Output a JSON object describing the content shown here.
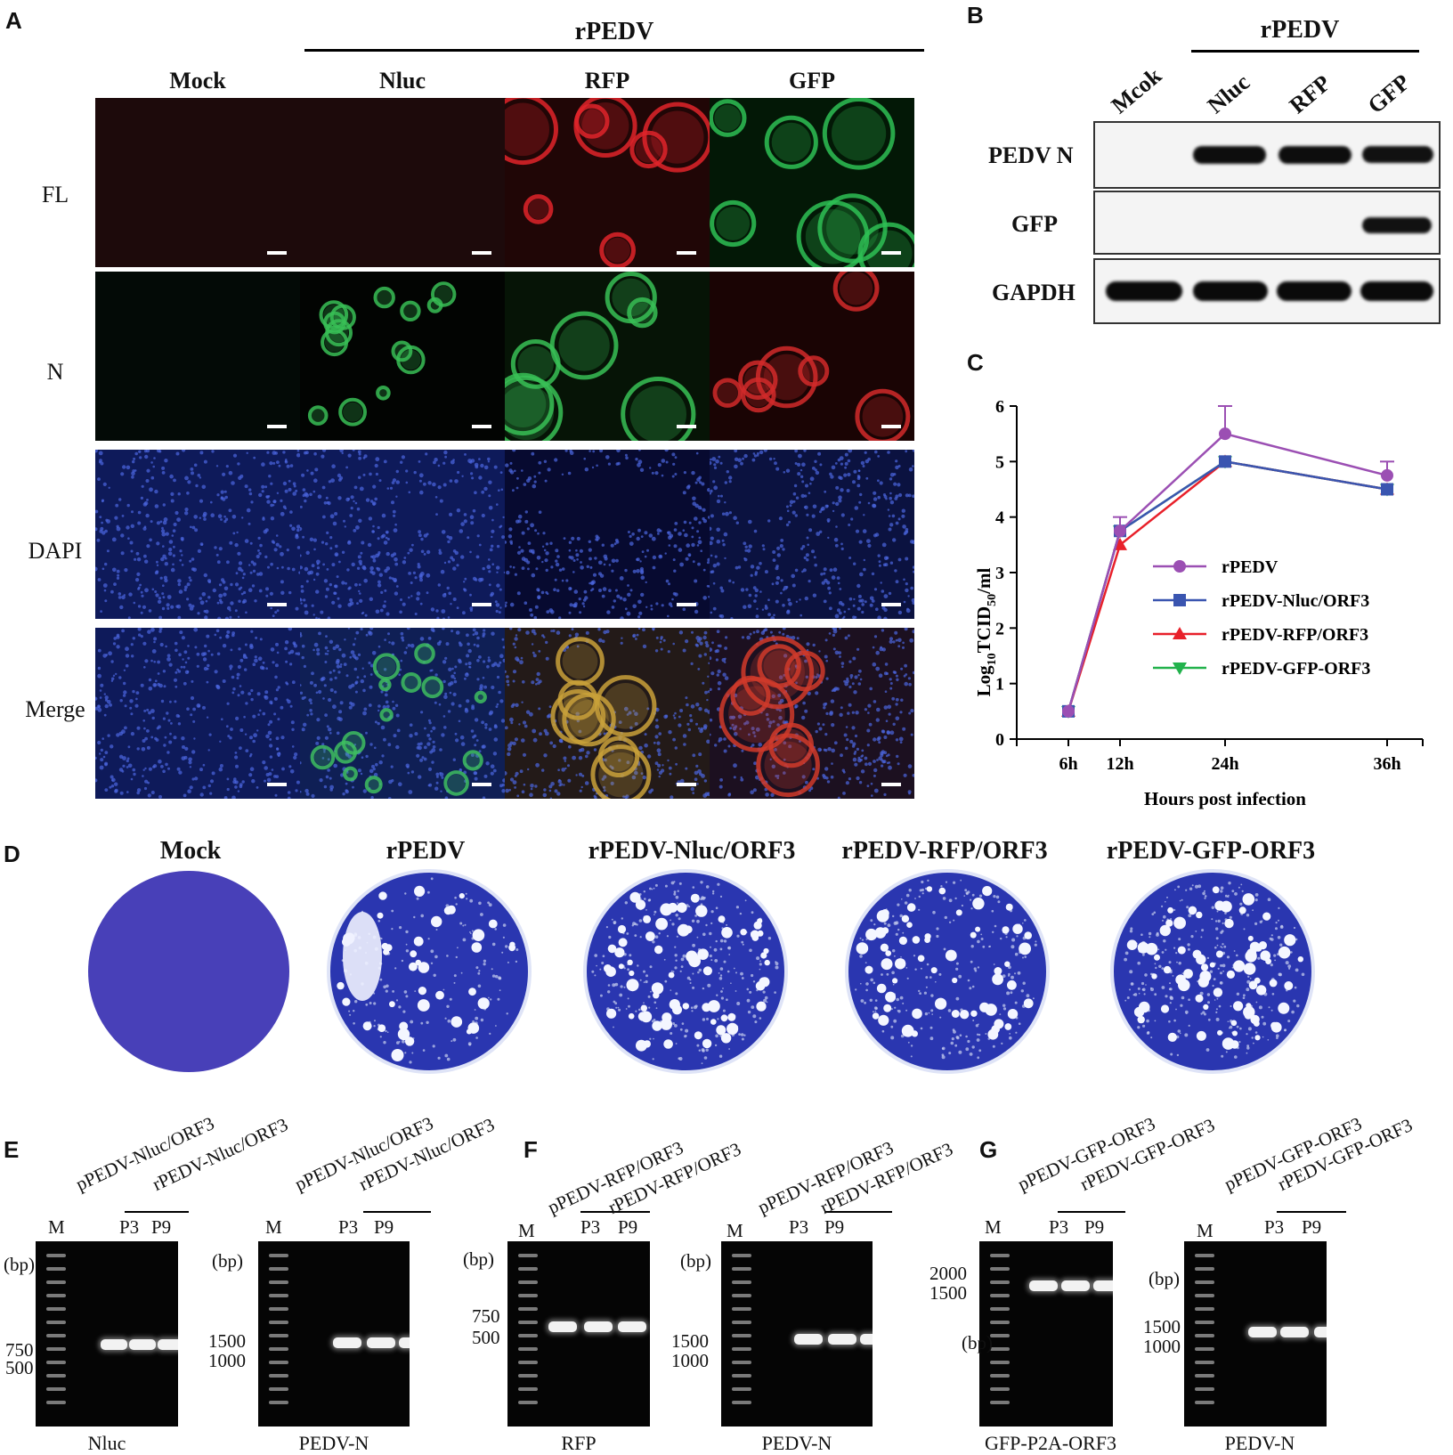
{
  "panels": {
    "a": "A",
    "b": "B",
    "c": "C",
    "d": "D",
    "e": "E",
    "f": "F",
    "g": "G"
  },
  "panel_a": {
    "group_label": "rPEDV",
    "columns": [
      "Mock",
      "Nluc",
      "RFP",
      "GFP"
    ],
    "rows": [
      "FL",
      "N",
      "DAPI",
      "Merge"
    ]
  },
  "panel_b": {
    "group_label": "rPEDV",
    "lanes": [
      "Mcok",
      "Nluc",
      "RFP",
      "GFP"
    ],
    "rows": [
      "PEDV N",
      "GFP",
      "GAPDH"
    ]
  },
  "chart_data": {
    "type": "line",
    "title": "",
    "xlabel": "Hours post infection",
    "ylabel_main": "Log",
    "ylabel_sub1": "10",
    "ylabel_mid": "TCID",
    "ylabel_sub2": "50",
    "ylabel_end": "/ml",
    "x_categories": [
      "6h",
      "12h",
      "24h",
      "36h"
    ],
    "ylim": [
      0,
      6
    ],
    "yticks": [
      "0",
      "1",
      "2",
      "3",
      "4",
      "5",
      "6"
    ],
    "legend_position": "center-right",
    "series": [
      {
        "name": "rPEDV",
        "color": "#9B4FB3",
        "marker": "circle",
        "values": [
          0.5,
          3.75,
          5.5,
          4.75
        ],
        "err": [
          0,
          0.25,
          0.5,
          0.25
        ]
      },
      {
        "name": "rPEDV-Nluc/ORF3",
        "color": "#3A55B0",
        "marker": "square",
        "values": [
          0.5,
          3.75,
          5.0,
          4.5
        ],
        "err": [
          0,
          0,
          0,
          0
        ]
      },
      {
        "name": "rPEDV-RFP/ORF3",
        "color": "#E8202A",
        "marker": "triangle-up",
        "values": [
          0.5,
          3.5,
          5.0,
          4.5
        ],
        "err": [
          0,
          0,
          0,
          0
        ]
      },
      {
        "name": "rPEDV-GFP-ORF3",
        "color": "#22B24C",
        "marker": "triangle-down",
        "values": [
          0.5,
          3.75,
          5.0,
          4.5
        ],
        "err": [
          0,
          0,
          0,
          0
        ]
      }
    ]
  },
  "panel_d": {
    "labels": [
      "Mock",
      "rPEDV",
      "rPEDV-Nluc/ORF3",
      "rPEDV-RFP/ORF3",
      "rPEDV-GFP-ORF3"
    ]
  },
  "panel_e": {
    "gel1": {
      "samples": [
        "pPEDV-Nluc/ORF3",
        "rPEDV-Nluc/ORF3"
      ],
      "marker": "M",
      "passages": [
        "P3",
        "P9"
      ],
      "unit": "(bp)",
      "sizes": [
        "750",
        "500"
      ],
      "caption": "Nluc"
    },
    "gel2": {
      "samples": [
        "pPEDV-Nluc/ORF3",
        "rPEDV-Nluc/ORF3"
      ],
      "marker": "M",
      "passages": [
        "P3",
        "P9"
      ],
      "unit": "(bp)",
      "sizes": [
        "1500",
        "1000"
      ],
      "caption": "PEDV-N"
    }
  },
  "panel_f": {
    "gel1": {
      "samples": [
        "pPEDV-RFP/ORF3",
        "rPEDV-RFP/ORF3"
      ],
      "marker": "M",
      "passages": [
        "P3",
        "P9"
      ],
      "unit": "(bp)",
      "sizes": [
        "750",
        "500"
      ],
      "caption": "RFP"
    },
    "gel2": {
      "samples": [
        "pPEDV-RFP/ORF3",
        "rPEDV-RFP/ORF3"
      ],
      "marker": "M",
      "passages": [
        "P3",
        "P9"
      ],
      "unit": "(bp)",
      "sizes": [
        "1500",
        "1000"
      ],
      "caption": "PEDV-N"
    }
  },
  "panel_g": {
    "gel1": {
      "samples": [
        "pPEDV-GFP-ORF3",
        "rPEDV-GFP-ORF3"
      ],
      "marker": "M",
      "passages": [
        "P3",
        "P9"
      ],
      "unit": "(bp)",
      "sizes": [
        "2000",
        "1500"
      ],
      "caption": "GFP-P2A-ORF3"
    },
    "gel2": {
      "samples": [
        "pPEDV-GFP-ORF3",
        "rPEDV-GFP-ORF3"
      ],
      "marker": "M",
      "passages": [
        "P3",
        "P9"
      ],
      "unit": "(bp)",
      "sizes": [
        "1500",
        "1000"
      ],
      "caption": "PEDV-N"
    }
  }
}
